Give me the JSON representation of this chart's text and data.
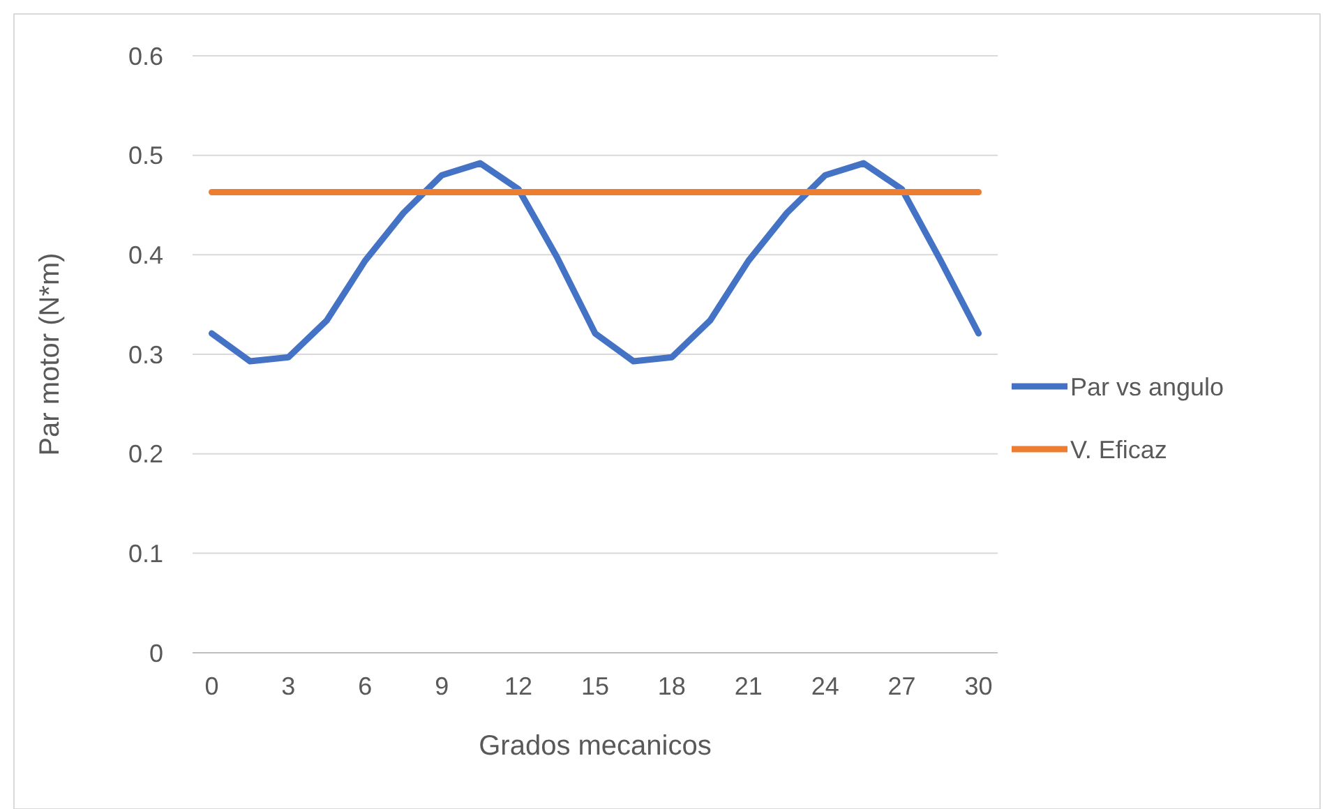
{
  "chart_data": {
    "type": "line",
    "xlabel": "Grados mecanicos",
    "ylabel": "Par motor (N*m)",
    "categories": [
      "0",
      null,
      "3",
      null,
      "6",
      null,
      "9",
      null,
      "12",
      null,
      "15",
      null,
      "18",
      null,
      "21",
      null,
      "24",
      null,
      "27",
      null,
      "30"
    ],
    "series": [
      {
        "name": "Par vs angulo",
        "color": "#4472c4",
        "values": [
          0.321,
          0.293,
          0.297,
          0.334,
          0.394,
          0.442,
          0.48,
          0.492,
          0.466,
          0.398,
          0.321,
          0.293,
          0.297,
          0.334,
          0.394,
          0.442,
          0.48,
          0.492,
          0.466,
          0.395,
          0.321
        ]
      },
      {
        "name": "V. Eficaz",
        "color": "#ed7d31",
        "values": [
          0.463,
          0.463,
          0.463,
          0.463,
          0.463,
          0.463,
          0.463,
          0.463,
          0.463,
          0.463,
          0.463,
          0.463,
          0.463,
          0.463,
          0.463,
          0.463,
          0.463,
          0.463,
          0.463,
          0.463,
          0.463
        ]
      }
    ],
    "ylim": [
      0,
      0.6
    ],
    "yticks": [
      0,
      0.1,
      0.2,
      0.3,
      0.4,
      0.5,
      0.6
    ],
    "grid": "y",
    "legend": "right",
    "marker": "none",
    "line_style": "solid"
  }
}
